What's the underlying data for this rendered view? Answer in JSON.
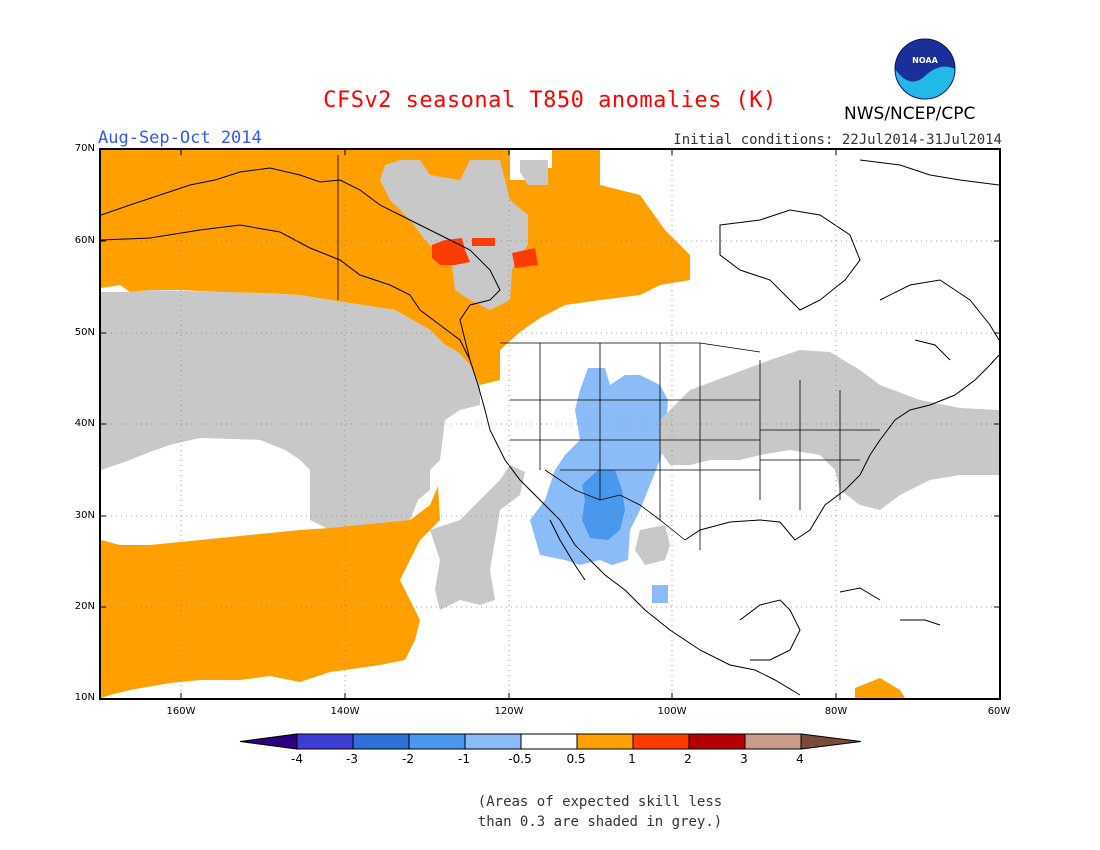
{
  "header": {
    "title": "CFSv2 seasonal T850 anomalies (K)",
    "agency": "NWS/NCEP/CPC",
    "logo_text": "NOAA",
    "season": "Aug-Sep-Oct 2014",
    "initial_conditions": "Initial conditions: 22Jul2014-31Jul2014"
  },
  "axes": {
    "lat_labels": [
      "70N",
      "60N",
      "50N",
      "40N",
      "30N",
      "20N",
      "10N"
    ],
    "lon_labels": [
      "160W",
      "140W",
      "120W",
      "100W",
      "80W",
      "60W"
    ]
  },
  "colorbar": {
    "labels": [
      "-4",
      "-3",
      "-2",
      "-1",
      "-0.5",
      "0.5",
      "1",
      "2",
      "3",
      "4"
    ],
    "colors": [
      "#2a0080",
      "#3d3dd6",
      "#2f6fd8",
      "#4a97ee",
      "#8bbcf7",
      "#ffffff",
      "#ffa000",
      "#ff3c00",
      "#b40000",
      "#c89c8c",
      "#7a4a3a"
    ]
  },
  "note": {
    "line1": "(Areas of expected skill less",
    "line2": "than 0.3 are shaded in grey.)"
  },
  "colors": {
    "warm_anomaly": "#ffa000",
    "strong_warm_anomaly": "#ff3c00",
    "cool_anomaly": "#8bbcf7",
    "strong_cool_anomaly": "#4a97ee",
    "low_skill_grey": "#c8c8c8"
  }
}
